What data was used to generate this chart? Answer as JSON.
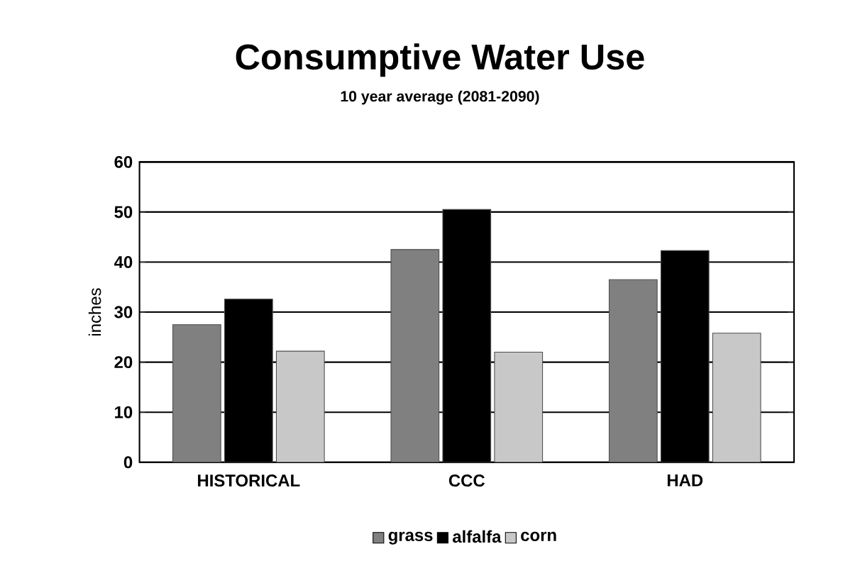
{
  "chart_data": {
    "type": "bar",
    "title": "Consumptive Water Use",
    "subtitle": "10 year average (2081-2090)",
    "ylabel": "inches",
    "categories": [
      "HISTORICAL",
      "CCC",
      "HAD"
    ],
    "series": [
      {
        "name": "grass",
        "color": "#808080",
        "values": [
          27.5,
          42.5,
          36.5
        ]
      },
      {
        "name": "alfalfa",
        "color": "#000000",
        "values": [
          32.6,
          50.5,
          42.3
        ]
      },
      {
        "name": "corn",
        "color": "#c8c8c8",
        "values": [
          22.2,
          22,
          25.8
        ]
      }
    ],
    "ylim": [
      0,
      60
    ],
    "yticks": [
      0,
      10,
      20,
      30,
      40,
      50,
      60
    ],
    "grid": "y",
    "legend": "bottom"
  }
}
